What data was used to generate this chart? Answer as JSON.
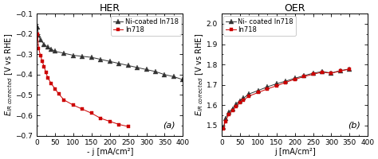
{
  "her": {
    "title": "HER",
    "xlabel": "- j [mA/cm²]",
    "xlim": [
      0,
      400
    ],
    "ylim": [
      -0.7,
      -0.1
    ],
    "yticks": [
      -0.7,
      -0.6,
      -0.5,
      -0.4,
      -0.3,
      -0.2,
      -0.1
    ],
    "xticks": [
      0,
      50,
      100,
      150,
      200,
      250,
      300,
      350,
      400
    ],
    "label_a": "(a)",
    "ni_x": [
      2,
      5,
      10,
      20,
      30,
      40,
      50,
      75,
      100,
      125,
      150,
      175,
      200,
      225,
      250,
      275,
      300,
      325,
      350,
      375,
      400
    ],
    "ni_y": [
      -0.165,
      -0.205,
      -0.23,
      -0.25,
      -0.265,
      -0.275,
      -0.285,
      -0.295,
      -0.305,
      -0.31,
      -0.315,
      -0.325,
      -0.335,
      -0.345,
      -0.355,
      -0.365,
      -0.375,
      -0.385,
      -0.4,
      -0.41,
      -0.425
    ],
    "in_x": [
      2,
      5,
      10,
      15,
      20,
      25,
      30,
      40,
      50,
      60,
      75,
      100,
      125,
      150,
      175,
      200,
      225,
      250
    ],
    "in_y": [
      -0.2,
      -0.27,
      -0.305,
      -0.335,
      -0.36,
      -0.39,
      -0.415,
      -0.445,
      -0.47,
      -0.495,
      -0.525,
      -0.55,
      -0.57,
      -0.59,
      -0.615,
      -0.63,
      -0.645,
      -0.655
    ]
  },
  "oer": {
    "title": "OER",
    "xlabel": "j [mA/cm²]",
    "xlim": [
      0,
      400
    ],
    "ylim": [
      1.45,
      2.05
    ],
    "yticks": [
      1.5,
      1.6,
      1.7,
      1.8,
      1.9,
      2.0
    ],
    "xticks": [
      0,
      50,
      100,
      150,
      200,
      250,
      300,
      350,
      400
    ],
    "label_b": "(b)",
    "ni_x": [
      5,
      10,
      20,
      30,
      40,
      50,
      60,
      75,
      100,
      125,
      150,
      175,
      200,
      225,
      250,
      275,
      300,
      325,
      350
    ],
    "ni_y": [
      1.49,
      1.535,
      1.565,
      1.582,
      1.605,
      1.622,
      1.635,
      1.655,
      1.672,
      1.69,
      1.705,
      1.718,
      1.732,
      1.745,
      1.757,
      1.765,
      1.758,
      1.77,
      1.778
    ],
    "in_x": [
      5,
      10,
      20,
      30,
      40,
      50,
      60,
      75,
      100,
      125,
      150,
      175,
      200,
      225,
      250,
      275,
      300,
      325,
      350
    ],
    "in_y": [
      1.485,
      1.52,
      1.555,
      1.574,
      1.595,
      1.612,
      1.625,
      1.645,
      1.662,
      1.68,
      1.695,
      1.712,
      1.727,
      1.74,
      1.752,
      1.762,
      1.757,
      1.768,
      1.777
    ]
  },
  "ni_color": "#333333",
  "in_color": "#cc0000",
  "bg_color": "#ffffff",
  "legend_ni_her": "Ni-coated In718",
  "legend_in_her": "In718",
  "legend_ni_oer": "Ni- coated In718",
  "legend_in_oer": "In718",
  "title_fontsize": 9,
  "label_fontsize": 7,
  "tick_fontsize": 6.5,
  "legend_fontsize": 6,
  "ylabel": "E_IR corrected [V vs RHE]"
}
